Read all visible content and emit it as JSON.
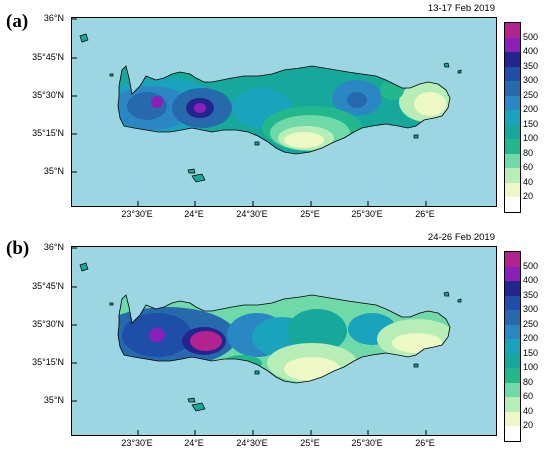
{
  "panels": [
    {
      "id": "a",
      "letter": "(a)",
      "date": "13-17 Feb 2019",
      "lat_labels": [
        "36°N",
        "35°45'N",
        "35°30'N",
        "35°15'N",
        "35°N"
      ],
      "lon_labels": [
        "23°30'E",
        "24°E",
        "24°30'E",
        "25°E",
        "25°30'E",
        "26°E"
      ]
    },
    {
      "id": "b",
      "letter": "(b)",
      "date": "24-26 Feb 2019",
      "lat_labels": [
        "36°N",
        "35°45'N",
        "35°30'N",
        "35°15'N",
        "35°N"
      ],
      "lon_labels": [
        "23°30'E",
        "24°E",
        "24°30'E",
        "25°E",
        "25°30'E",
        "26°E"
      ]
    }
  ],
  "colorbar": {
    "levels": [
      "500",
      "400",
      "350",
      "300",
      "250",
      "200",
      "150",
      "100",
      "80",
      "60",
      "40",
      "20"
    ],
    "colors": [
      "#b3238f",
      "#8b1fb8",
      "#23258f",
      "#1f4ea8",
      "#2769ad",
      "#2b87c4",
      "#1aa3bd",
      "#17a89c",
      "#22b88c",
      "#6fd9a8",
      "#b7eeb7",
      "#eef8c4",
      "#ffffff"
    ]
  },
  "colors": {
    "sea": "#9dd6e3"
  }
}
